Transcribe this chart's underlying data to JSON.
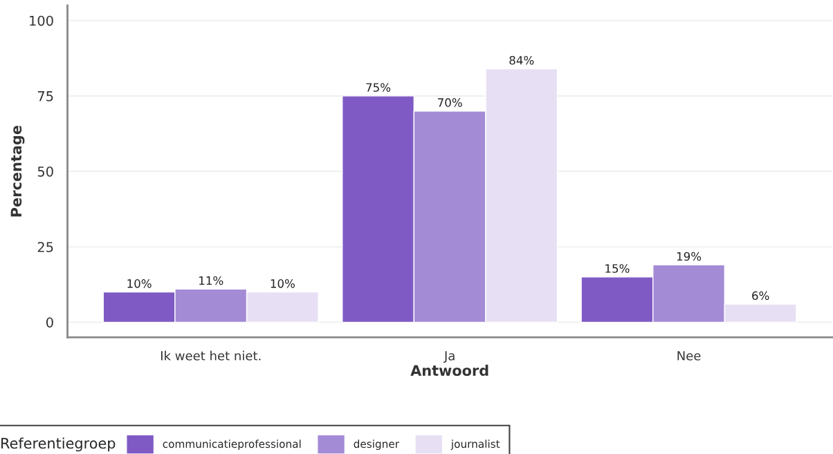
{
  "chart_data": {
    "type": "bar",
    "xlabel": "Antwoord",
    "ylabel": "Percentage",
    "legend_title": "Referentiegroep",
    "categories": [
      "Ik weet het niet.",
      "Ja",
      "Nee"
    ],
    "series": [
      {
        "name": "communicatieprofessional",
        "color": "#7f5ac4",
        "values": [
          10,
          75,
          15
        ],
        "value_labels": [
          "10%",
          "75%",
          "15%"
        ]
      },
      {
        "name": "designer",
        "color": "#a48bd6",
        "values": [
          11,
          70,
          19
        ],
        "value_labels": [
          "11%",
          "70%",
          "19%"
        ]
      },
      {
        "name": "journalist",
        "color": "#e7e0f4",
        "values": [
          10,
          84,
          6
        ],
        "value_labels": [
          "10%",
          "84%",
          "6%"
        ]
      }
    ],
    "ylim": [
      -5,
      105
    ],
    "yticks": [
      0,
      25,
      50,
      75,
      100
    ],
    "grid": "y",
    "legend": "bottom"
  }
}
